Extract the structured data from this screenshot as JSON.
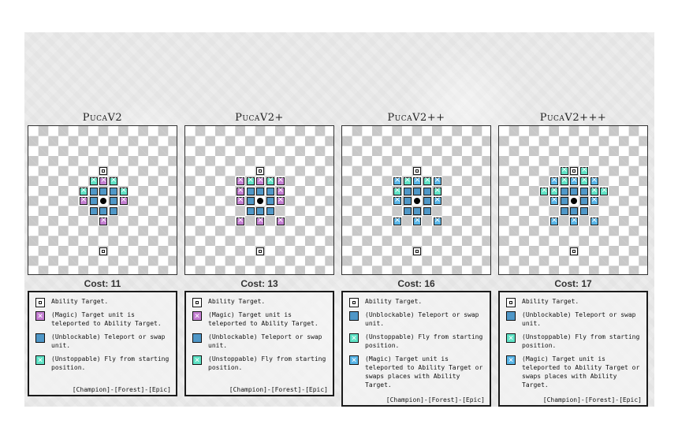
{
  "panels": [
    {
      "title": "PucaV2",
      "cost": "Cost: 11",
      "legend": [
        {
          "icon": "ability",
          "text": "Ability Target."
        },
        {
          "icon": "magic",
          "text": "(Magic) Target unit is teleported to Ability Target."
        },
        {
          "icon": "unblock",
          "text": "(Unblockable) Teleport or swap unit."
        },
        {
          "icon": "unstop",
          "text": "(Unstoppable) Fly from starting position."
        }
      ],
      "tags": "[Champion]-[Forest]-[Epic]"
    },
    {
      "title": "PucaV2+",
      "cost": "Cost: 13",
      "legend": [
        {
          "icon": "ability",
          "text": "Ability Target."
        },
        {
          "icon": "magic",
          "text": "(Magic) Target unit is teleported to Ability Target."
        },
        {
          "icon": "unblock",
          "text": "(Unblockable) Teleport or swap unit."
        },
        {
          "icon": "unstop",
          "text": "(Unstoppable) Fly from starting position."
        }
      ],
      "tags": "[Champion]-[Forest]-[Epic]"
    },
    {
      "title": "PucaV2++",
      "cost": "Cost: 16",
      "legend": [
        {
          "icon": "ability",
          "text": "Ability Target."
        },
        {
          "icon": "unblock",
          "text": "(Unblockable) Teleport or swap unit."
        },
        {
          "icon": "unstop",
          "text": "(Unstoppable) Fly from starting position."
        },
        {
          "icon": "magicb",
          "text": "(Magic) Target unit is teleported to Ability Target or swaps places with Ability Target."
        }
      ],
      "tags": "[Champion]-[Forest]-[Epic]"
    },
    {
      "title": "PucaV2+++",
      "cost": "Cost: 17",
      "legend": [
        {
          "icon": "ability",
          "text": "Ability Target."
        },
        {
          "icon": "unblock",
          "text": "(Unblockable) Teleport or swap unit."
        },
        {
          "icon": "unstop",
          "text": "(Unstoppable) Fly from starting position."
        },
        {
          "icon": "magicb",
          "text": "(Magic) Target unit is teleported to Ability Target or swaps places with Ability Target."
        }
      ],
      "tags": "[Champion]-[Forest]-[Epic]"
    }
  ],
  "colors": {
    "magic": "#c57fd3",
    "unblockable": "#4f97c7",
    "unstoppable": "#5fe3c6",
    "magic_swap": "#59b6e8",
    "unit": "#000000"
  },
  "boards": [
    {
      "cells": [
        {
          "c": 7,
          "r": 4,
          "t": "ability"
        },
        {
          "c": 6,
          "r": 5,
          "t": "unstop"
        },
        {
          "c": 7,
          "r": 5,
          "t": "magic"
        },
        {
          "c": 8,
          "r": 5,
          "t": "unstop"
        },
        {
          "c": 5,
          "r": 6,
          "t": "unstop"
        },
        {
          "c": 6,
          "r": 6,
          "t": "unblock"
        },
        {
          "c": 7,
          "r": 6,
          "t": "unblock"
        },
        {
          "c": 8,
          "r": 6,
          "t": "unblock"
        },
        {
          "c": 9,
          "r": 6,
          "t": "unstop"
        },
        {
          "c": 5,
          "r": 7,
          "t": "magic"
        },
        {
          "c": 6,
          "r": 7,
          "t": "unblock"
        },
        {
          "c": 8,
          "r": 7,
          "t": "unblock"
        },
        {
          "c": 9,
          "r": 7,
          "t": "magic"
        },
        {
          "c": 6,
          "r": 8,
          "t": "unblock"
        },
        {
          "c": 7,
          "r": 8,
          "t": "unblock"
        },
        {
          "c": 8,
          "r": 8,
          "t": "unblock"
        },
        {
          "c": 7,
          "r": 9,
          "t": "magic"
        },
        {
          "c": 7,
          "r": 12,
          "t": "ability"
        }
      ]
    },
    {
      "cells": [
        {
          "c": 7,
          "r": 4,
          "t": "ability"
        },
        {
          "c": 5,
          "r": 5,
          "t": "magic"
        },
        {
          "c": 6,
          "r": 5,
          "t": "unstop"
        },
        {
          "c": 7,
          "r": 5,
          "t": "magic"
        },
        {
          "c": 8,
          "r": 5,
          "t": "unstop"
        },
        {
          "c": 9,
          "r": 5,
          "t": "magic"
        },
        {
          "c": 5,
          "r": 6,
          "t": "magic"
        },
        {
          "c": 6,
          "r": 6,
          "t": "unblock"
        },
        {
          "c": 7,
          "r": 6,
          "t": "unblock"
        },
        {
          "c": 8,
          "r": 6,
          "t": "unblock"
        },
        {
          "c": 9,
          "r": 6,
          "t": "magic"
        },
        {
          "c": 5,
          "r": 7,
          "t": "magic"
        },
        {
          "c": 6,
          "r": 7,
          "t": "unblock"
        },
        {
          "c": 8,
          "r": 7,
          "t": "unblock"
        },
        {
          "c": 9,
          "r": 7,
          "t": "magic"
        },
        {
          "c": 6,
          "r": 8,
          "t": "unblock"
        },
        {
          "c": 7,
          "r": 8,
          "t": "unblock"
        },
        {
          "c": 8,
          "r": 8,
          "t": "unblock"
        },
        {
          "c": 5,
          "r": 9,
          "t": "magic"
        },
        {
          "c": 7,
          "r": 9,
          "t": "magic"
        },
        {
          "c": 9,
          "r": 9,
          "t": "magic"
        },
        {
          "c": 7,
          "r": 12,
          "t": "ability"
        }
      ]
    },
    {
      "cells": [
        {
          "c": 7,
          "r": 4,
          "t": "ability"
        },
        {
          "c": 5,
          "r": 5,
          "t": "magicb"
        },
        {
          "c": 6,
          "r": 5,
          "t": "unstop"
        },
        {
          "c": 7,
          "r": 5,
          "t": "magicb"
        },
        {
          "c": 8,
          "r": 5,
          "t": "unstop"
        },
        {
          "c": 9,
          "r": 5,
          "t": "magicb"
        },
        {
          "c": 5,
          "r": 6,
          "t": "unstop"
        },
        {
          "c": 6,
          "r": 6,
          "t": "unblock"
        },
        {
          "c": 7,
          "r": 6,
          "t": "unblock"
        },
        {
          "c": 8,
          "r": 6,
          "t": "unblock"
        },
        {
          "c": 9,
          "r": 6,
          "t": "unstop"
        },
        {
          "c": 5,
          "r": 7,
          "t": "magicb"
        },
        {
          "c": 6,
          "r": 7,
          "t": "unblock"
        },
        {
          "c": 8,
          "r": 7,
          "t": "unblock"
        },
        {
          "c": 9,
          "r": 7,
          "t": "magicb"
        },
        {
          "c": 6,
          "r": 8,
          "t": "unblock"
        },
        {
          "c": 7,
          "r": 8,
          "t": "unblock"
        },
        {
          "c": 8,
          "r": 8,
          "t": "unblock"
        },
        {
          "c": 5,
          "r": 9,
          "t": "magicb"
        },
        {
          "c": 7,
          "r": 9,
          "t": "magicb"
        },
        {
          "c": 9,
          "r": 9,
          "t": "magicb"
        },
        {
          "c": 7,
          "r": 12,
          "t": "ability"
        }
      ]
    },
    {
      "cells": [
        {
          "c": 6,
          "r": 4,
          "t": "unstop"
        },
        {
          "c": 7,
          "r": 4,
          "t": "ability"
        },
        {
          "c": 8,
          "r": 4,
          "t": "unstop"
        },
        {
          "c": 5,
          "r": 5,
          "t": "magicb"
        },
        {
          "c": 6,
          "r": 5,
          "t": "unstop"
        },
        {
          "c": 7,
          "r": 5,
          "t": "magicb"
        },
        {
          "c": 8,
          "r": 5,
          "t": "unstop"
        },
        {
          "c": 9,
          "r": 5,
          "t": "magicb"
        },
        {
          "c": 4,
          "r": 6,
          "t": "unstop"
        },
        {
          "c": 5,
          "r": 6,
          "t": "unstop"
        },
        {
          "c": 6,
          "r": 6,
          "t": "unblock"
        },
        {
          "c": 7,
          "r": 6,
          "t": "unblock"
        },
        {
          "c": 8,
          "r": 6,
          "t": "unblock"
        },
        {
          "c": 9,
          "r": 6,
          "t": "unstop"
        },
        {
          "c": 10,
          "r": 6,
          "t": "unstop"
        },
        {
          "c": 5,
          "r": 7,
          "t": "magicb"
        },
        {
          "c": 6,
          "r": 7,
          "t": "unblock"
        },
        {
          "c": 8,
          "r": 7,
          "t": "unblock"
        },
        {
          "c": 9,
          "r": 7,
          "t": "magicb"
        },
        {
          "c": 6,
          "r": 8,
          "t": "unblock"
        },
        {
          "c": 7,
          "r": 8,
          "t": "unblock"
        },
        {
          "c": 8,
          "r": 8,
          "t": "unblock"
        },
        {
          "c": 5,
          "r": 9,
          "t": "magicb"
        },
        {
          "c": 7,
          "r": 9,
          "t": "magicb"
        },
        {
          "c": 9,
          "r": 9,
          "t": "magicb"
        },
        {
          "c": 7,
          "r": 12,
          "t": "ability"
        }
      ]
    }
  ]
}
